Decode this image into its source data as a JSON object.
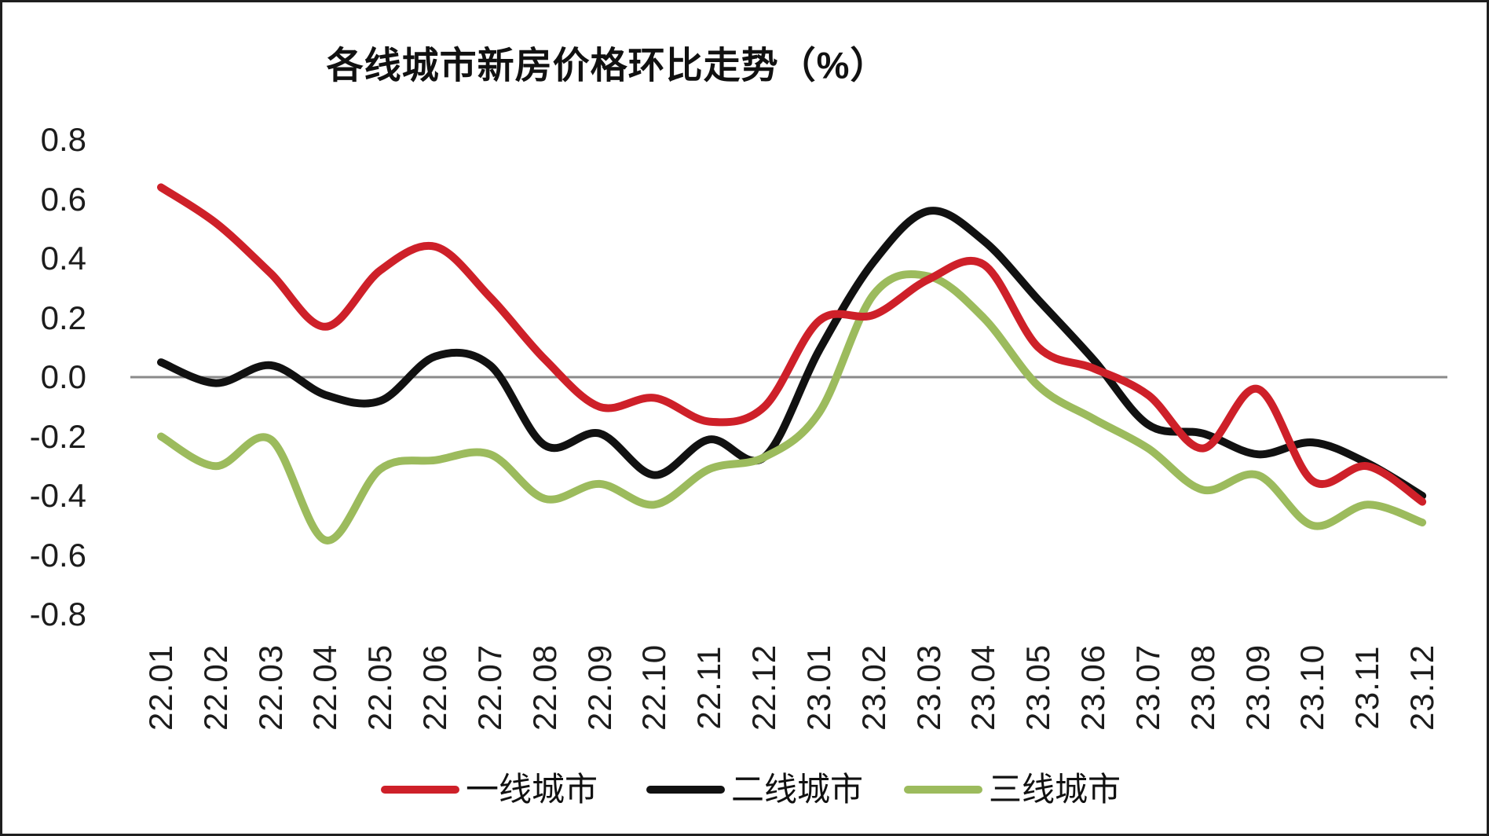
{
  "title": "各线城市新房价格环比走势（%）",
  "colors": {
    "tier1": "#ce2029",
    "tier2": "#111111",
    "tier3": "#9cbb5d",
    "zero_line": "#8a8a8a",
    "text": "#1c1c1c"
  },
  "legend": {
    "items": [
      {
        "label": "一线城市",
        "color": "#ce2029"
      },
      {
        "label": "二线城市",
        "color": "#111111"
      },
      {
        "label": "三线城市",
        "color": "#9cbb5d"
      }
    ]
  },
  "chart_data": {
    "type": "line",
    "title": "各线城市新房价格环比走势（%）",
    "smooth": true,
    "grid": false,
    "legend_position": "bottom",
    "xlabel": "",
    "ylabel": "",
    "ylim": [
      -0.8,
      0.8
    ],
    "y_ticks": [
      "0.8",
      "0.6",
      "0.4",
      "0.2",
      "0.0",
      "-0.2",
      "-0.4",
      "-0.6",
      "-0.8"
    ],
    "y_tick_values": [
      0.8,
      0.6,
      0.4,
      0.2,
      0.0,
      -0.2,
      -0.4,
      -0.6,
      -0.8
    ],
    "categories": [
      "22.01",
      "22.02",
      "22.03",
      "22.04",
      "22.05",
      "22.06",
      "22.07",
      "22.08",
      "22.09",
      "22.10",
      "22.11",
      "22.12",
      "23.01",
      "23.02",
      "23.03",
      "23.04",
      "23.05",
      "23.06",
      "23.07",
      "23.08",
      "23.09",
      "23.10",
      "23.11",
      "23.12"
    ],
    "series": [
      {
        "name": "一线城市",
        "color": "#ce2029",
        "values": [
          0.64,
          0.52,
          0.35,
          0.17,
          0.36,
          0.44,
          0.27,
          0.06,
          -0.1,
          -0.07,
          -0.15,
          -0.1,
          0.19,
          0.21,
          0.33,
          0.38,
          0.1,
          0.03,
          -0.06,
          -0.24,
          -0.04,
          -0.35,
          -0.3,
          -0.42
        ]
      },
      {
        "name": "二线城市",
        "color": "#111111",
        "values": [
          0.05,
          -0.02,
          0.04,
          -0.06,
          -0.08,
          0.07,
          0.04,
          -0.23,
          -0.19,
          -0.33,
          -0.21,
          -0.27,
          0.09,
          0.39,
          0.56,
          0.46,
          0.26,
          0.06,
          -0.16,
          -0.19,
          -0.26,
          -0.22,
          -0.29,
          -0.4
        ]
      },
      {
        "name": "三线城市",
        "color": "#9cbb5d",
        "values": [
          -0.2,
          -0.3,
          -0.21,
          -0.55,
          -0.31,
          -0.28,
          -0.26,
          -0.41,
          -0.36,
          -0.43,
          -0.31,
          -0.27,
          -0.12,
          0.28,
          0.34,
          0.2,
          -0.03,
          -0.14,
          -0.24,
          -0.38,
          -0.33,
          -0.5,
          -0.43,
          -0.49
        ]
      }
    ]
  }
}
